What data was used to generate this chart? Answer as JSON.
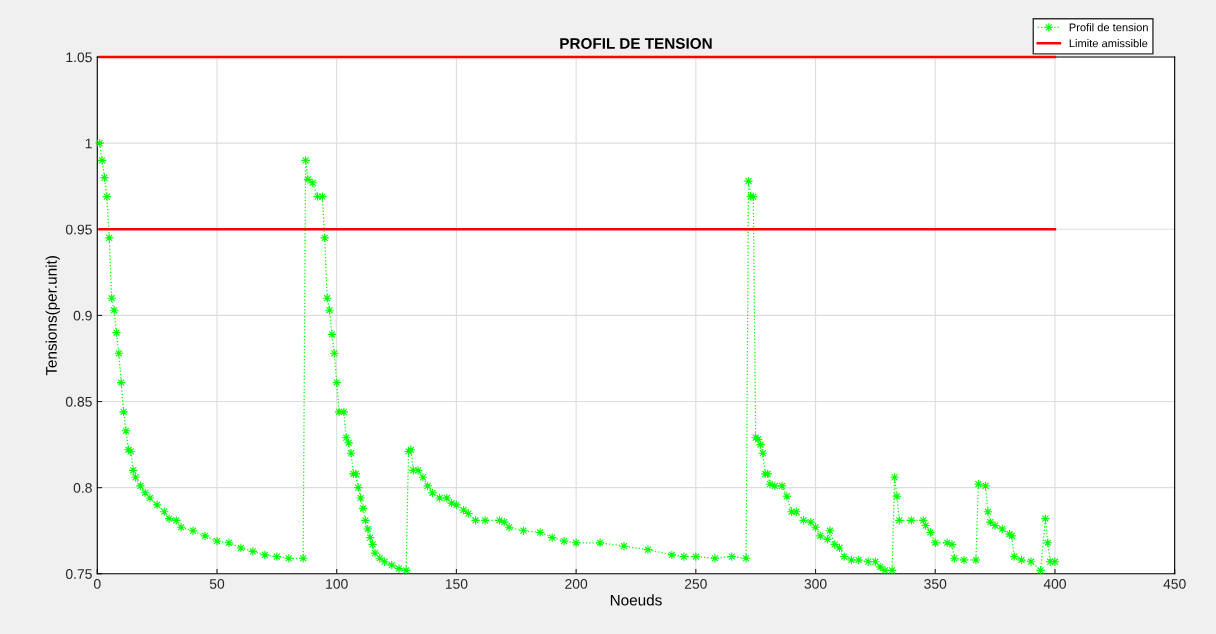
{
  "chart_data": {
    "type": "line",
    "title": "PROFIL DE TENSION",
    "xlabel": "Noeuds",
    "ylabel": "Tensions(per.unit)",
    "xlim": [
      0,
      450
    ],
    "xticks": [
      0,
      50,
      100,
      150,
      200,
      250,
      300,
      350,
      400,
      450
    ],
    "ylim": [
      0.75,
      1.05
    ],
    "yticks": [
      0.75,
      0.8,
      0.85,
      0.9,
      0.95,
      1,
      1.05
    ],
    "grid": true,
    "legend": "top right",
    "series": [
      {
        "name": "Profil de tension",
        "color": "#00ff00",
        "marker": "star",
        "line_style": "dotted",
        "x": [
          1,
          2,
          3,
          4,
          5,
          6,
          7,
          8,
          9,
          10,
          11,
          12,
          13,
          14,
          15,
          16,
          18,
          20,
          22,
          25,
          28,
          30,
          33,
          35,
          40,
          45,
          50,
          55,
          60,
          65,
          70,
          75,
          80,
          86,
          87,
          88,
          90,
          92,
          94,
          95,
          96,
          97,
          98,
          99,
          100,
          101,
          103,
          104,
          105,
          106,
          107,
          108,
          109,
          110,
          111,
          112,
          113,
          114,
          115,
          116,
          118,
          120,
          123,
          126,
          129,
          130,
          131,
          132,
          134,
          136,
          138,
          140,
          143,
          146,
          148,
          150,
          153,
          155,
          158,
          162,
          168,
          170,
          172,
          178,
          185,
          190,
          195,
          200,
          210,
          220,
          230,
          240,
          245,
          250,
          258,
          265,
          271,
          272,
          273,
          274,
          275,
          276,
          277,
          278,
          279,
          280,
          281,
          283,
          286,
          288,
          290,
          292,
          295,
          298,
          300,
          302,
          305,
          306,
          308,
          310,
          312,
          315,
          318,
          322,
          325,
          327,
          329,
          332,
          333,
          334,
          335,
          340,
          345,
          346,
          348,
          350,
          355,
          357,
          358,
          362,
          367,
          368,
          371,
          372,
          373,
          375,
          378,
          381,
          382,
          383,
          386,
          390,
          394,
          396,
          397,
          398,
          400
        ],
        "values": [
          1.0,
          0.99,
          0.98,
          0.969,
          0.945,
          0.91,
          0.903,
          0.89,
          0.878,
          0.861,
          0.844,
          0.833,
          0.822,
          0.821,
          0.81,
          0.806,
          0.801,
          0.797,
          0.794,
          0.79,
          0.786,
          0.782,
          0.781,
          0.777,
          0.775,
          0.772,
          0.769,
          0.768,
          0.765,
          0.763,
          0.761,
          0.76,
          0.759,
          0.759,
          0.99,
          0.979,
          0.977,
          0.969,
          0.969,
          0.945,
          0.91,
          0.903,
          0.889,
          0.878,
          0.861,
          0.844,
          0.844,
          0.829,
          0.826,
          0.82,
          0.808,
          0.808,
          0.8,
          0.794,
          0.788,
          0.781,
          0.776,
          0.771,
          0.767,
          0.762,
          0.759,
          0.757,
          0.755,
          0.753,
          0.752,
          0.821,
          0.822,
          0.81,
          0.81,
          0.806,
          0.801,
          0.797,
          0.794,
          0.794,
          0.791,
          0.79,
          0.787,
          0.785,
          0.781,
          0.781,
          0.781,
          0.78,
          0.777,
          0.775,
          0.774,
          0.771,
          0.769,
          0.768,
          0.768,
          0.766,
          0.764,
          0.761,
          0.76,
          0.76,
          0.759,
          0.76,
          0.759,
          0.978,
          0.969,
          0.969,
          0.829,
          0.828,
          0.825,
          0.82,
          0.808,
          0.808,
          0.802,
          0.801,
          0.801,
          0.795,
          0.786,
          0.786,
          0.781,
          0.78,
          0.777,
          0.772,
          0.77,
          0.775,
          0.767,
          0.765,
          0.76,
          0.758,
          0.758,
          0.757,
          0.757,
          0.754,
          0.752,
          0.752,
          0.806,
          0.795,
          0.781,
          0.781,
          0.781,
          0.778,
          0.774,
          0.768,
          0.768,
          0.767,
          0.759,
          0.758,
          0.758,
          0.802,
          0.801,
          0.786,
          0.78,
          0.778,
          0.776,
          0.773,
          0.772,
          0.76,
          0.758,
          0.757,
          0.752,
          0.782,
          0.768,
          0.757,
          0.757
        ]
      },
      {
        "name": "Limite amissible",
        "color": "#ff0000",
        "line_style": "solid",
        "x": [
          1,
          400
        ],
        "values": [
          1.05,
          1.05
        ]
      },
      {
        "color": "#ff0000",
        "line_style": "solid",
        "x": [
          1,
          400
        ],
        "values": [
          0.95,
          0.95
        ]
      }
    ]
  }
}
